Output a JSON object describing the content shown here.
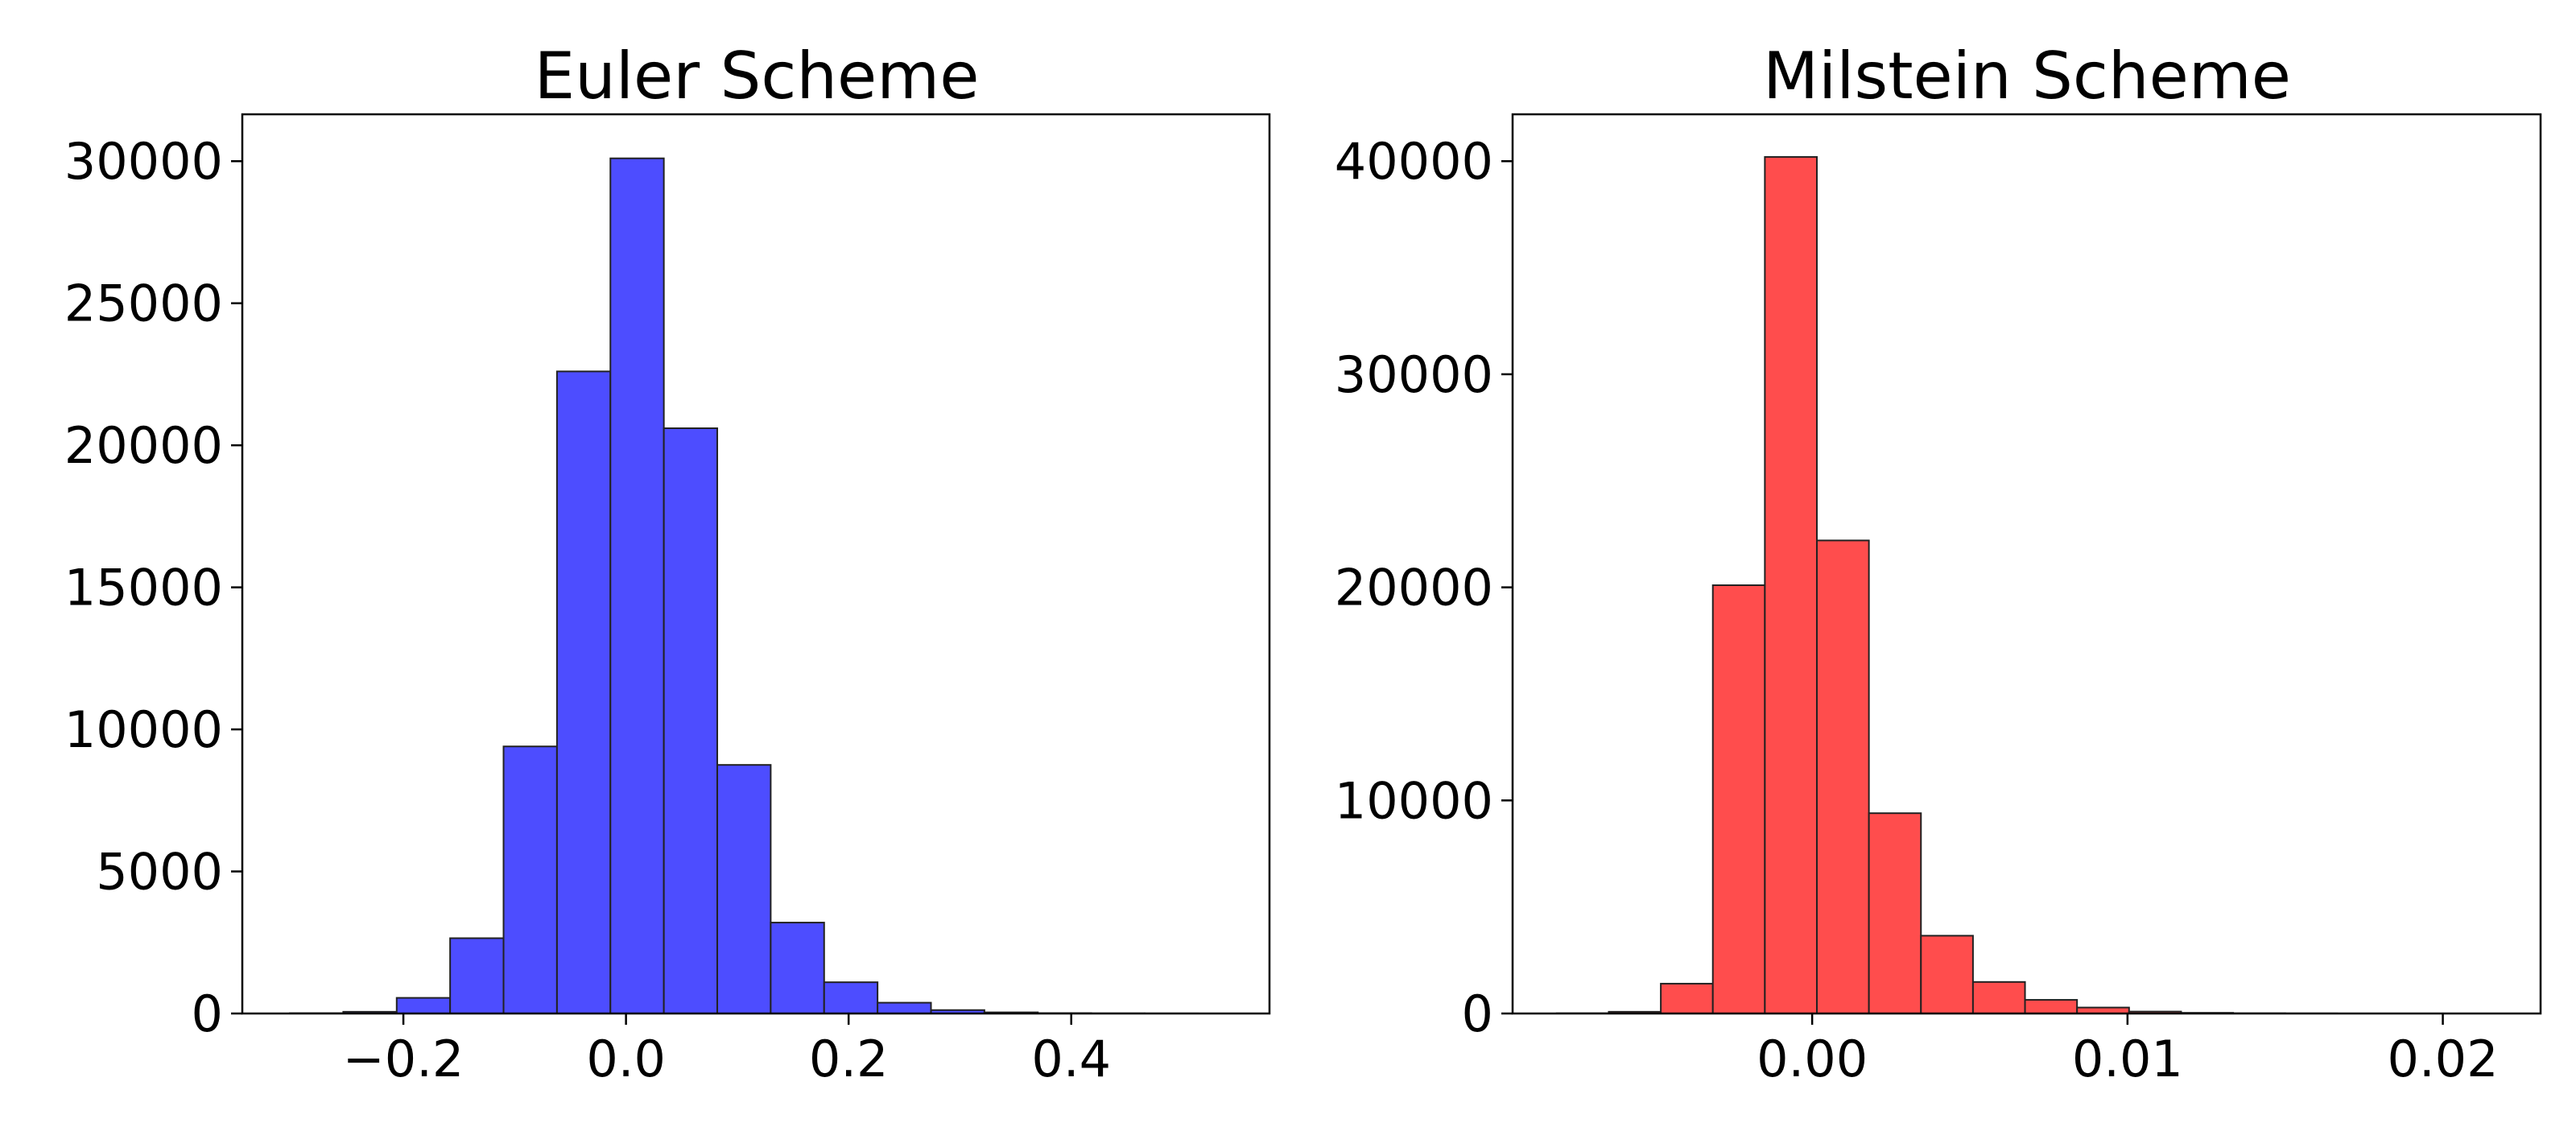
{
  "chart_data": [
    {
      "type": "bar",
      "title": "Euler Scheme",
      "xlabel": "",
      "ylabel": "",
      "color": "#4d4dff",
      "edge_color": "#222222",
      "xlim": [
        -0.3447,
        0.5781
      ],
      "ylim": [
        0,
        31650
      ],
      "xticks": [
        -0.2,
        0.0,
        0.2,
        0.4
      ],
      "xtick_labels": [
        "−0.2",
        "0.0",
        "0.2",
        "0.4"
      ],
      "yticks": [
        0,
        5000,
        10000,
        15000,
        20000,
        25000,
        30000
      ],
      "ytick_labels": [
        "0",
        "5000",
        "10000",
        "15000",
        "20000",
        "25000",
        "30000"
      ],
      "bin_edges": [
        -0.302,
        -0.254,
        -0.206,
        -0.158,
        -0.11,
        -0.062,
        -0.014,
        0.034,
        0.082,
        0.13,
        0.178,
        0.226,
        0.274,
        0.322,
        0.37,
        0.418,
        0.466,
        0.514
      ],
      "values": [
        10,
        60,
        550,
        2650,
        9400,
        22600,
        30100,
        20600,
        8750,
        3200,
        1100,
        380,
        120,
        40,
        12,
        5,
        2
      ]
    },
    {
      "type": "bar",
      "title": "Milstein Scheme",
      "xlabel": "",
      "ylabel": "",
      "color": "#ff4d4d",
      "edge_color": "#222222",
      "xlim": [
        -0.0095,
        0.0231
      ],
      "ylim": [
        0,
        42200
      ],
      "xticks": [
        0.0,
        0.01,
        0.02
      ],
      "xtick_labels": [
        "0.00",
        "0.01",
        "0.02"
      ],
      "yticks": [
        0,
        10000,
        20000,
        30000,
        40000
      ],
      "ytick_labels": [
        "0",
        "10000",
        "20000",
        "30000",
        "40000"
      ],
      "bin_edges": [
        -0.0081,
        -0.00645,
        -0.0048,
        -0.00315,
        -0.0015,
        0.00015,
        0.0018,
        0.00345,
        0.0051,
        0.00675,
        0.0084,
        0.01005,
        0.0117,
        0.01335,
        0.015,
        0.01665
      ],
      "values": [
        10,
        80,
        1400,
        20100,
        40200,
        22200,
        9400,
        3650,
        1480,
        640,
        280,
        90,
        30,
        10,
        4
      ]
    }
  ]
}
